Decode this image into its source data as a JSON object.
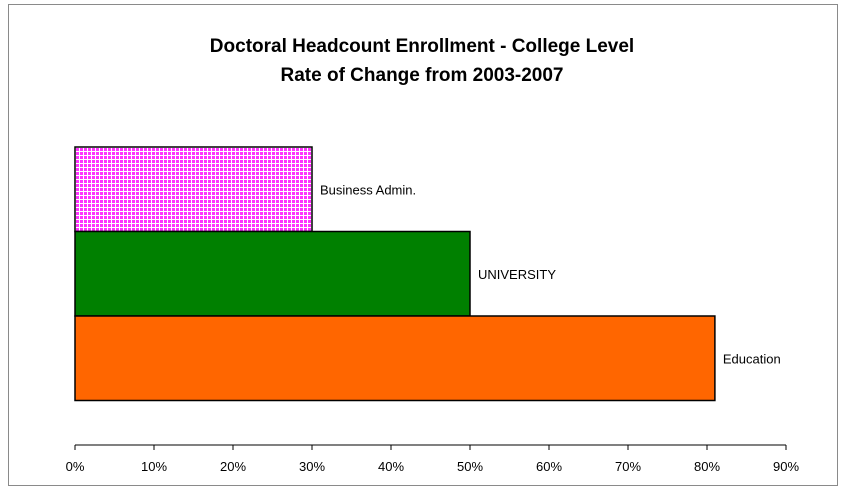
{
  "chart_data": {
    "type": "bar",
    "orientation": "horizontal",
    "title": [
      "Doctoral Headcount Enrollment - College Level",
      "Rate of Change from 2003-2007"
    ],
    "xlabel": "",
    "ylabel": "",
    "xlim": [
      0,
      90
    ],
    "x_ticks": [
      0,
      10,
      20,
      30,
      40,
      50,
      60,
      70,
      80,
      90
    ],
    "x_tick_labels": [
      "0%",
      "10%",
      "20%",
      "30%",
      "40%",
      "50%",
      "60%",
      "70%",
      "80%",
      "90%"
    ],
    "grid": false,
    "legend": "none",
    "bars": [
      {
        "category": "Business Admin.",
        "value": 30,
        "color": "#ff33ff",
        "pattern": "checkered"
      },
      {
        "category": "UNIVERSITY",
        "value": 50,
        "color": "#008000",
        "pattern": "solid"
      },
      {
        "category": "Education",
        "value": 81,
        "color": "#ff6600",
        "pattern": "solid"
      }
    ]
  }
}
